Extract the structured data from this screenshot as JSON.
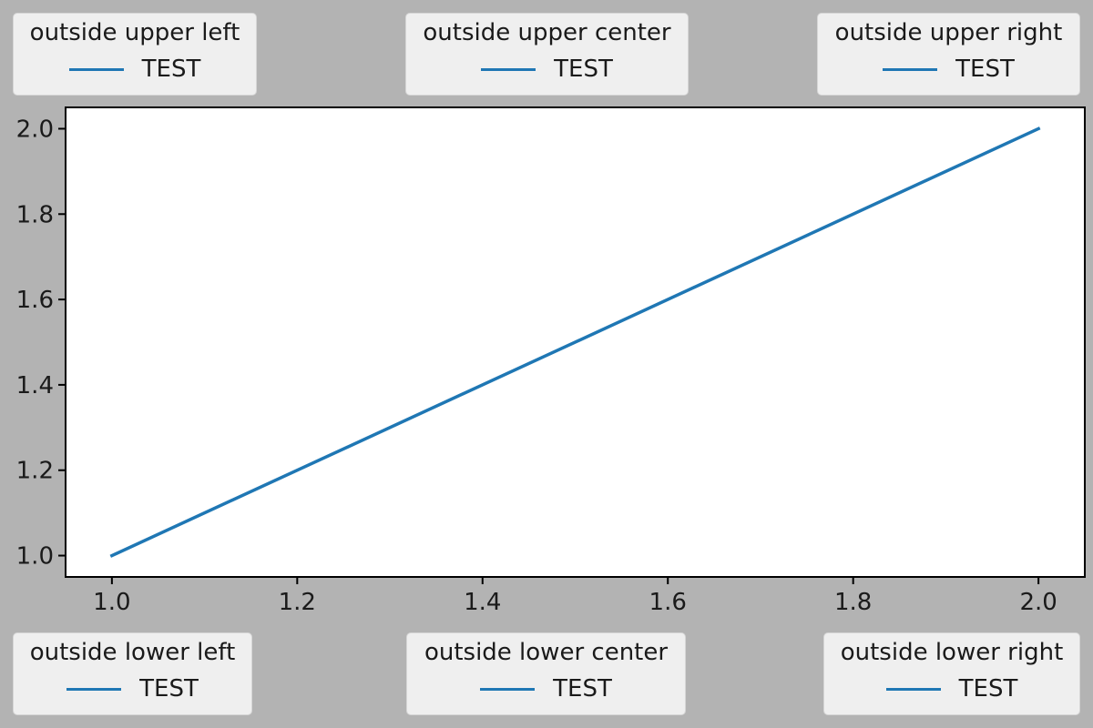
{
  "chart_data": {
    "type": "line",
    "title": "",
    "xlabel": "",
    "ylabel": "",
    "xlim": [
      0.95,
      2.05
    ],
    "ylim": [
      0.95,
      2.05
    ],
    "xticks": [
      1.0,
      1.2,
      1.4,
      1.6,
      1.8,
      2.0
    ],
    "xtick_labels": [
      "1.0",
      "1.2",
      "1.4",
      "1.6",
      "1.8",
      "2.0"
    ],
    "yticks": [
      1.0,
      1.2,
      1.4,
      1.6,
      1.8,
      2.0
    ],
    "ytick_labels": [
      "1.0",
      "1.2",
      "1.4",
      "1.6",
      "1.8",
      "2.0"
    ],
    "grid": false,
    "series": [
      {
        "name": "TEST",
        "x": [
          1,
          2
        ],
        "y": [
          1,
          2
        ],
        "color": "#1f77b4"
      }
    ],
    "legends": [
      {
        "title": "outside upper left",
        "entry": "TEST",
        "placement": "outside upper left"
      },
      {
        "title": "outside upper center",
        "entry": "TEST",
        "placement": "outside upper center"
      },
      {
        "title": "outside upper right",
        "entry": "TEST",
        "placement": "outside upper right"
      },
      {
        "title": "outside lower left",
        "entry": "TEST",
        "placement": "outside lower left"
      },
      {
        "title": "outside lower center",
        "entry": "TEST",
        "placement": "outside lower center"
      },
      {
        "title": "outside lower right",
        "entry": "TEST",
        "placement": "outside lower right"
      }
    ],
    "colors": {
      "figure_background": "#b3b3b3",
      "axes_background": "#ffffff",
      "legend_background": "#efefef",
      "line": "#1f77b4"
    }
  }
}
